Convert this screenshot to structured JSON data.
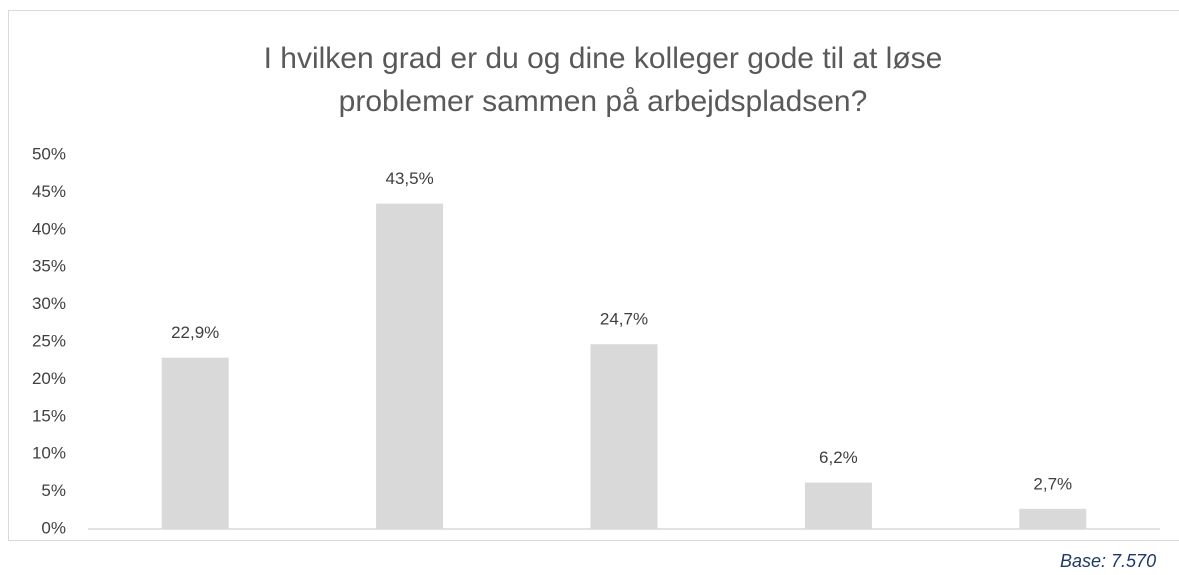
{
  "chart_data": {
    "type": "bar",
    "title": [
      "I hvilken grad er du og dine kolleger gode til at løse",
      "problemer sammen på arbejdspladsen?"
    ],
    "categories": [
      null,
      null,
      null,
      null,
      null
    ],
    "values": [
      22.9,
      43.5,
      24.7,
      6.2,
      2.7
    ],
    "value_labels": [
      "22,9%",
      "43,5%",
      "24,7%",
      "6,2%",
      "2,7%"
    ],
    "color": "#d9d9d9",
    "ylim": [
      0,
      50
    ],
    "yticks": [
      {
        "value": 0,
        "label": "0%"
      },
      {
        "value": 5,
        "label": "5%"
      },
      {
        "value": 10,
        "label": "10%"
      },
      {
        "value": 15,
        "label": "15%"
      },
      {
        "value": 20,
        "label": "20%"
      },
      {
        "value": 25,
        "label": "25%"
      },
      {
        "value": 30,
        "label": "30%"
      },
      {
        "value": 35,
        "label": "35%"
      },
      {
        "value": 40,
        "label": "40%"
      },
      {
        "value": 45,
        "label": "45%"
      },
      {
        "value": 50,
        "label": "50%"
      }
    ],
    "grid": false,
    "annotation": "Base: 7.570"
  }
}
